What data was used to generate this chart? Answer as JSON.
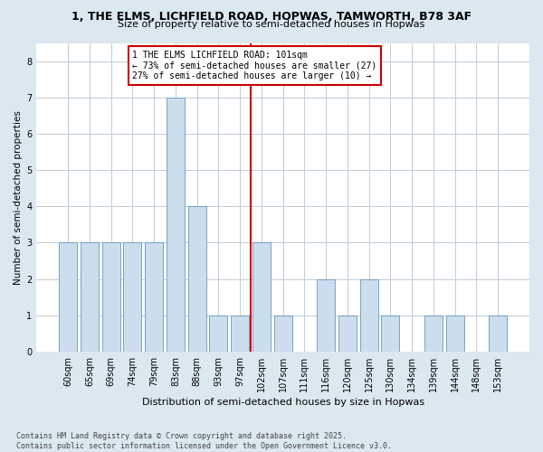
{
  "title_line1": "1, THE ELMS, LICHFIELD ROAD, HOPWAS, TAMWORTH, B78 3AF",
  "title_line2": "Size of property relative to semi-detached houses in Hopwas",
  "xlabel": "Distribution of semi-detached houses by size in Hopwas",
  "ylabel": "Number of semi-detached properties",
  "categories": [
    "60sqm",
    "65sqm",
    "69sqm",
    "74sqm",
    "79sqm",
    "83sqm",
    "88sqm",
    "93sqm",
    "97sqm",
    "102sqm",
    "107sqm",
    "111sqm",
    "116sqm",
    "120sqm",
    "125sqm",
    "130sqm",
    "134sqm",
    "139sqm",
    "144sqm",
    "148sqm",
    "153sqm"
  ],
  "values": [
    3,
    3,
    3,
    3,
    3,
    7,
    4,
    1,
    1,
    3,
    1,
    0,
    2,
    1,
    2,
    1,
    0,
    1,
    1,
    0,
    1
  ],
  "bar_color": "#ccdded",
  "bar_edge_color": "#6699bb",
  "vline_color": "#cc0000",
  "vline_x_index": 9,
  "annotation_text_line1": "1 THE ELMS LICHFIELD ROAD: 101sqm",
  "annotation_text_line2": "← 73% of semi-detached houses are smaller (27)",
  "annotation_text_line3": "27% of semi-detached houses are larger (10) →",
  "ylim": [
    0,
    8.5
  ],
  "yticks": [
    0,
    1,
    2,
    3,
    4,
    5,
    6,
    7,
    8
  ],
  "footer_line1": "Contains HM Land Registry data © Crown copyright and database right 2025.",
  "footer_line2": "Contains public sector information licensed under the Open Government Licence v3.0.",
  "background_color": "#dce8f0",
  "plot_background_color": "#ffffff",
  "grid_color": "#c0ccd8",
  "title1_fontsize": 9,
  "title2_fontsize": 8,
  "xlabel_fontsize": 8,
  "ylabel_fontsize": 7.5,
  "tick_fontsize": 7,
  "annotation_fontsize": 7,
  "footer_fontsize": 6
}
